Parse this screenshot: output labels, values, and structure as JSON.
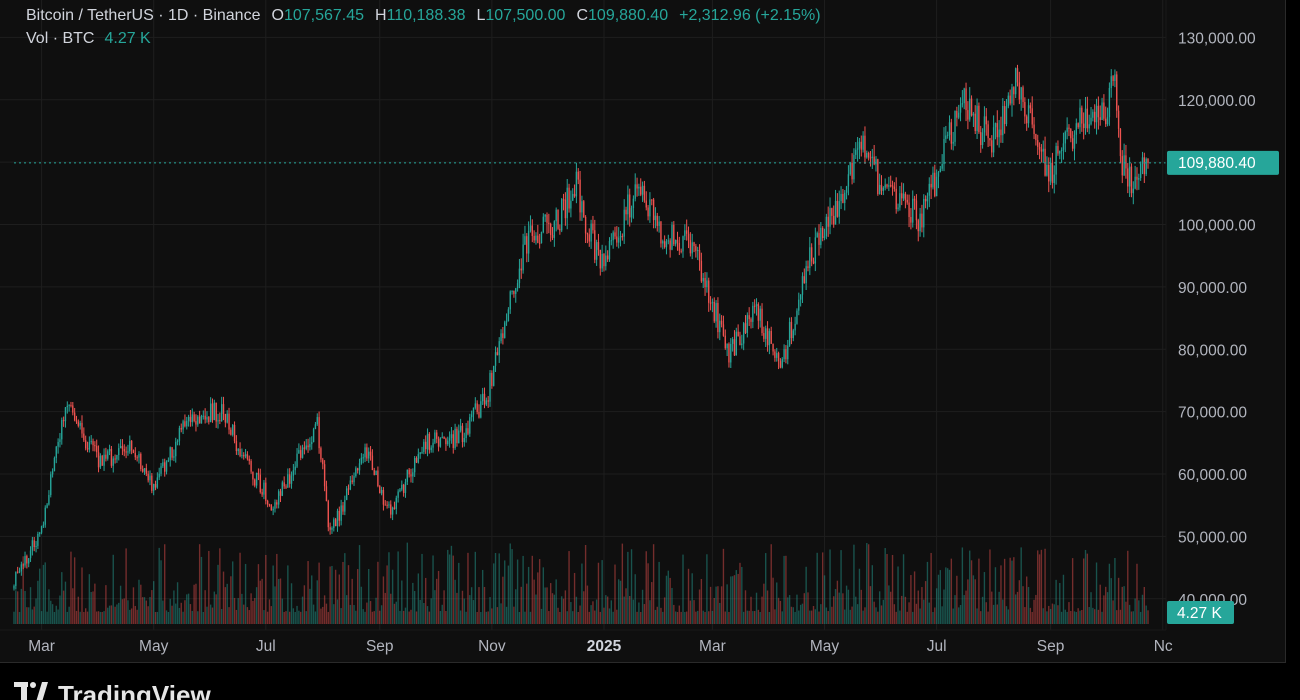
{
  "legend": {
    "symbol": "Bitcoin / TetherUS · 1D · Binance",
    "o_key": "O",
    "o_val": "107,567.45",
    "h_key": "H",
    "h_val": "110,188.38",
    "l_key": "L",
    "l_val": "107,500.00",
    "c_key": "C",
    "c_val": "109,880.40",
    "change": "+2,312.96 (+2.15%)",
    "vol_label": "Vol · BTC",
    "vol_val": "4.27 K"
  },
  "price_axis": {
    "ticks": [
      "130,000.00",
      "120,000.00",
      "110,000.00",
      "100,000.00",
      "90,000.00",
      "80,000.00",
      "70,000.00",
      "60,000.00",
      "50,000.00",
      "40,000.00"
    ],
    "last_price_tag": "109,880.40",
    "volume_tag": "4.27 K"
  },
  "time_axis": {
    "labels": [
      "Mar",
      "May",
      "Jul",
      "Sep",
      "Nov",
      "2025",
      "Mar",
      "May",
      "Jul",
      "Sep",
      "Nc"
    ]
  },
  "logo_text": "TradingView",
  "colors": {
    "up": "#26a69a",
    "down": "#ef5350",
    "last_price_line": "#26a69a",
    "grid": "#1e1e1e",
    "background": "#0f0f0f"
  },
  "chart_data": {
    "type": "candlestick",
    "symbol": "Bitcoin / TetherUS",
    "interval": "1D",
    "exchange": "Binance",
    "ylim": [
      35000,
      136000
    ],
    "last_close": 109880.4,
    "last_volume_btc": 4270,
    "x": [
      "2024-02-15",
      "2024-03-01",
      "2024-03-14",
      "2024-04-01",
      "2024-04-20",
      "2024-05-01",
      "2024-05-20",
      "2024-06-07",
      "2024-06-24",
      "2024-07-05",
      "2024-07-29",
      "2024-08-05",
      "2024-08-24",
      "2024-09-06",
      "2024-09-27",
      "2024-10-14",
      "2024-10-29",
      "2024-11-12",
      "2024-11-22",
      "2024-12-05",
      "2024-12-17",
      "2024-12-30",
      "2025-01-20",
      "2025-02-03",
      "2025-02-20",
      "2025-03-10",
      "2025-03-25",
      "2025-04-07",
      "2025-04-22",
      "2025-05-08",
      "2025-05-22",
      "2025-06-05",
      "2025-06-22",
      "2025-07-01",
      "2025-07-14",
      "2025-07-31",
      "2025-08-14",
      "2025-08-31",
      "2025-09-18",
      "2025-10-01",
      "2025-10-06",
      "2025-10-10",
      "2025-10-17",
      "2025-10-24"
    ],
    "close": [
      43000,
      51000,
      71000,
      62000,
      64000,
      58000,
      69000,
      70000,
      60000,
      55000,
      68000,
      50000,
      64000,
      54000,
      65000,
      66000,
      72000,
      90000,
      99000,
      100000,
      106000,
      93000,
      106000,
      98000,
      96000,
      79000,
      86000,
      77000,
      94000,
      103000,
      112000,
      104000,
      101000,
      107000,
      120000,
      113000,
      123000,
      108000,
      117000,
      118000,
      125000,
      110000,
      106000,
      109880
    ]
  }
}
